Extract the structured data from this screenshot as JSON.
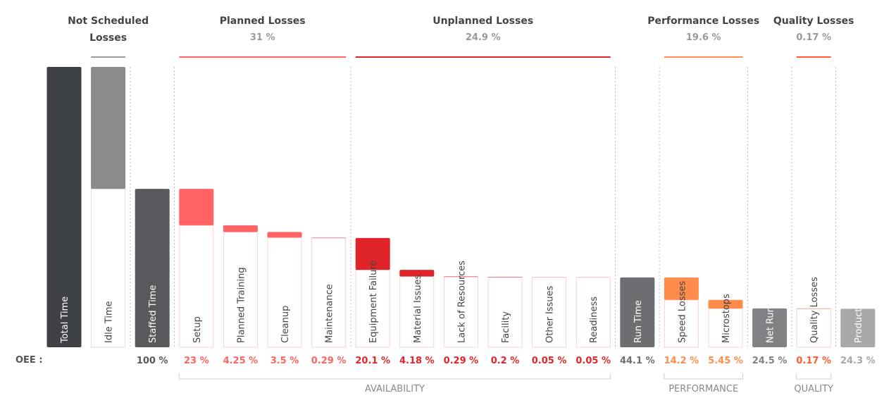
{
  "chart_data": {
    "type": "waterfall",
    "row_label": "OEE :",
    "categories": [
      "Total Time",
      "Idle Time",
      "Staffed Time",
      "Setup",
      "Planned Training",
      "Cleanup",
      "Maintenance",
      "Equipment Failure",
      "Material Issues",
      "Lack of Resources",
      "Facility",
      "Other Issues",
      "Readiness",
      "Run Time",
      "Speed Losses",
      "Microstops",
      "Net Run Time",
      "Quality Losses",
      "Productive Time"
    ],
    "kinds": [
      "total",
      "loss",
      "total",
      "loss",
      "loss",
      "loss",
      "loss",
      "loss",
      "loss",
      "loss",
      "loss",
      "loss",
      "loss",
      "total",
      "loss",
      "loss",
      "total",
      "loss",
      "total"
    ],
    "values": [
      177,
      77,
      100,
      23,
      4.25,
      3.5,
      0.29,
      20.1,
      4.18,
      0.29,
      0.2,
      0.05,
      0.05,
      44.1,
      14.2,
      5.45,
      24.5,
      0.17,
      24.3
    ],
    "value_labels": [
      null,
      null,
      "100 %",
      "23 %",
      "4.25 %",
      "3.5 %",
      "0.29 %",
      "20.1 %",
      "4.18 %",
      "0.29 %",
      "0.2 %",
      "0.05 %",
      "0.05 %",
      "44.1 %",
      "14.2 %",
      "5.45 %",
      "24.5 %",
      "0.17 %",
      "24.3 %"
    ],
    "colors": [
      "#3e4246",
      "#8a8b8d",
      "#57595c",
      "#ff6363",
      "#ff6363",
      "#ff6363",
      "#ff6363",
      "#e0252a",
      "#e0252a",
      "#e0252a",
      "#e0252a",
      "#e0252a",
      "#e0252a",
      "#6c6e71",
      "#ff8c4a",
      "#ff8c4a",
      "#808285",
      "#ff5b2e",
      "#a6a8aa"
    ],
    "groups": [
      {
        "name": "Not Scheduled Losses",
        "color": "#9a9b9d"
      },
      {
        "name": "Planned Losses",
        "subtitle": "31 %",
        "color": "#ff6363"
      },
      {
        "name": "Unplanned Losses",
        "subtitle": "24.9 %",
        "color": "#e0252a"
      },
      {
        "name": "Performance Losses",
        "subtitle": "19.6 %",
        "color": "#ff8c4a"
      },
      {
        "name": "Quality Losses",
        "subtitle": "0.17 %",
        "color": "#ff5b2e"
      }
    ],
    "brackets": [
      "AVAILABILITY",
      "PERFORMANCE",
      "QUALITY"
    ]
  }
}
